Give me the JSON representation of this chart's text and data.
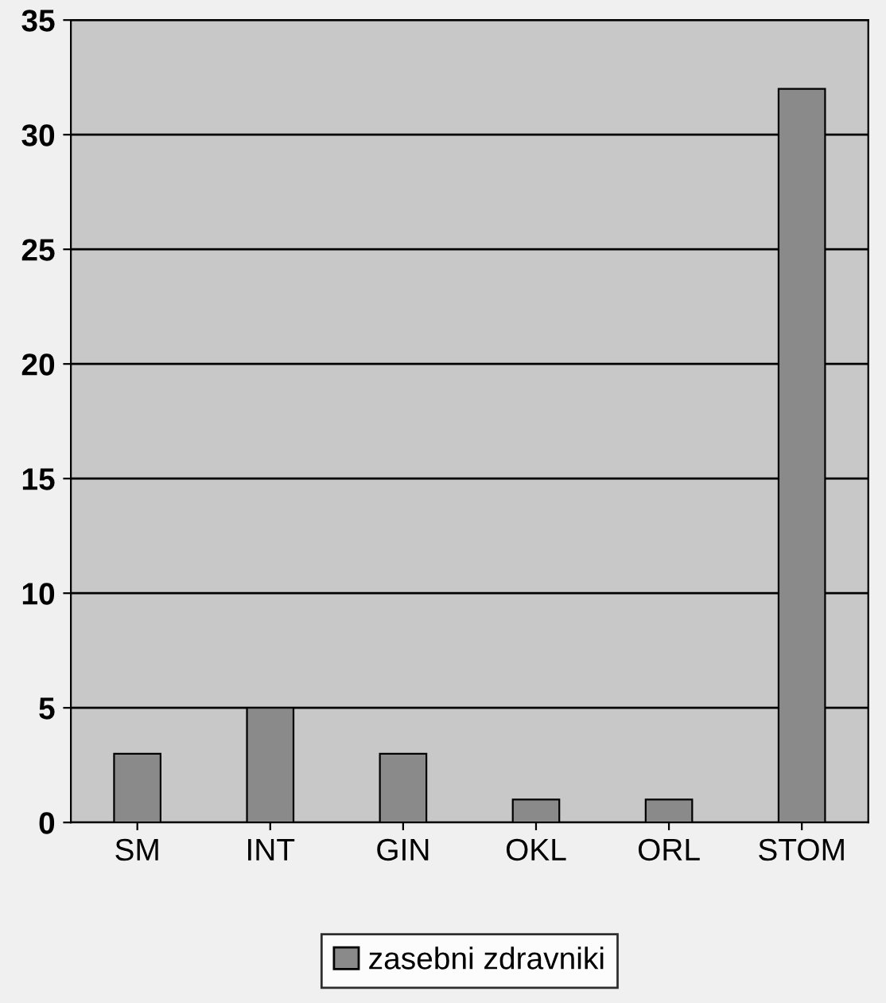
{
  "chart_data": {
    "type": "bar",
    "categories": [
      "SM",
      "INT",
      "GIN",
      "OKL",
      "ORL",
      "STOM"
    ],
    "series": [
      {
        "name": "zasebni zdravniki",
        "color": "#8a8a8a",
        "values": [
          3,
          5,
          3,
          1,
          1,
          32
        ]
      }
    ],
    "ylim": [
      0,
      35
    ],
    "yticks": [
      0,
      5,
      10,
      15,
      20,
      25,
      30,
      35
    ],
    "grid": "y",
    "legend": "bottom"
  }
}
